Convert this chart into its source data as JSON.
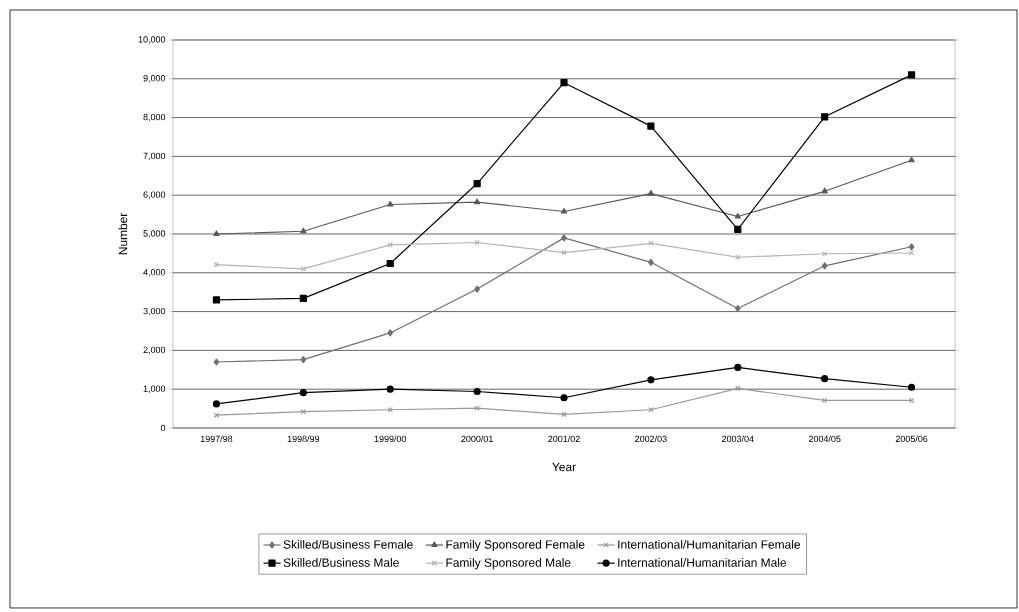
{
  "chart_data": {
    "type": "line",
    "xlabel": "Year",
    "ylabel": "Number",
    "categories": [
      "1997/98",
      "1998/99",
      "1999/00",
      "2000/01",
      "2001/02",
      "2002/03",
      "2003/04",
      "2004/05",
      "2005/06"
    ],
    "ylim": [
      0,
      10000
    ],
    "yticks": [
      {
        "value": 0,
        "label": "0"
      },
      {
        "value": 1000,
        "label": "1,000"
      },
      {
        "value": 2000,
        "label": "2,000"
      },
      {
        "value": 3000,
        "label": "3,000"
      },
      {
        "value": 4000,
        "label": "4,000"
      },
      {
        "value": 5000,
        "label": "5,000"
      },
      {
        "value": 6000,
        "label": "6,000"
      },
      {
        "value": 7000,
        "label": "7,000"
      },
      {
        "value": 8000,
        "label": "8,000"
      },
      {
        "value": 9000,
        "label": "9,000"
      },
      {
        "value": 10000,
        "label": "10,000"
      }
    ],
    "grid": "y",
    "legend": "bottom",
    "line_style": "solid",
    "series": [
      {
        "name": "Skilled/Business Female",
        "color": "#707070",
        "marker": "diamond",
        "values": [
          1700,
          1760,
          2450,
          3580,
          4900,
          4270,
          3080,
          4180,
          4670
        ]
      },
      {
        "name": "Family Sponsored Female",
        "color": "#595959",
        "marker": "triangle",
        "values": [
          5000,
          5070,
          5760,
          5820,
          5580,
          6040,
          5450,
          6100,
          6900
        ]
      },
      {
        "name": "International/Humanitarian Female",
        "color": "#999999",
        "marker": "cross",
        "values": [
          330,
          420,
          470,
          510,
          350,
          470,
          1020,
          710,
          710
        ]
      },
      {
        "name": "Skilled/Business Male",
        "color": "#000000",
        "marker": "square",
        "values": [
          3300,
          3340,
          4240,
          6300,
          8900,
          7780,
          5120,
          8020,
          9100
        ]
      },
      {
        "name": "Family Sponsored Male",
        "color": "#b3b3b3",
        "marker": "cross",
        "values": [
          4210,
          4100,
          4720,
          4780,
          4520,
          4760,
          4400,
          4490,
          4510
        ]
      },
      {
        "name": "International/Humanitarian Male",
        "color": "#000000",
        "marker": "circle",
        "values": [
          620,
          910,
          1000,
          940,
          780,
          1240,
          1560,
          1270,
          1050
        ]
      }
    ]
  }
}
